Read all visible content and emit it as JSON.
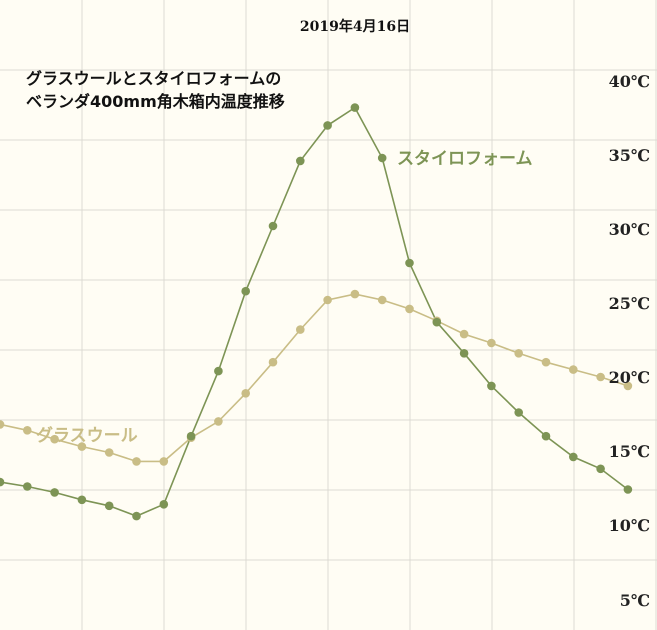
{
  "chart_data": {
    "type": "line",
    "date": "2019年4月16日",
    "title_lines": [
      "グラスウールとスタイロフォームの",
      "ベランダ400mm角木箱内温度推移"
    ],
    "y_ticks": [
      {
        "value": 40,
        "label": "40℃"
      },
      {
        "value": 35,
        "label": "35℃"
      },
      {
        "value": 30,
        "label": "30℃"
      },
      {
        "value": 25,
        "label": "25℃"
      },
      {
        "value": 20,
        "label": "20℃"
      },
      {
        "value": 15,
        "label": "15℃"
      },
      {
        "value": 10,
        "label": "10℃"
      },
      {
        "value": 5,
        "label": "5℃"
      }
    ],
    "ylim": [
      5,
      42
    ],
    "x_count": 24,
    "grid": true,
    "series": [
      {
        "name": "スタイロフォーム",
        "color": "#7d9455",
        "values": [
          12.9,
          12.6,
          12.2,
          11.7,
          11.3,
          10.6,
          11.4,
          16.0,
          20.4,
          25.8,
          30.2,
          34.6,
          37.0,
          38.2,
          34.8,
          27.7,
          23.7,
          21.6,
          19.4,
          17.6,
          16.0,
          14.6,
          13.8,
          12.4
        ]
      },
      {
        "name": "グラスウール",
        "color": "#c9bd86",
        "values": [
          16.8,
          16.4,
          15.8,
          15.3,
          14.9,
          14.3,
          14.3,
          15.9,
          17.0,
          18.9,
          21.0,
          23.2,
          25.2,
          25.6,
          25.2,
          24.6,
          23.8,
          22.9,
          22.3,
          21.6,
          21.0,
          20.5,
          20.0,
          19.4
        ]
      }
    ]
  }
}
